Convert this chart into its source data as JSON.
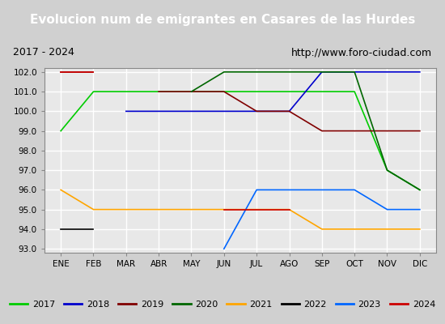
{
  "title": "Evolucion num de emigrantes en Casares de las Hurdes",
  "subtitle_left": "2017 - 2024",
  "subtitle_right": "http://www.foro-ciudad.com",
  "x_labels": [
    "ENE",
    "FEB",
    "MAR",
    "ABR",
    "MAY",
    "JUN",
    "JUL",
    "AGO",
    "SEP",
    "OCT",
    "NOV",
    "DIC"
  ],
  "ylim": [
    93.0,
    102.0
  ],
  "yticks": [
    93.0,
    94.0,
    95.0,
    96.0,
    97.0,
    98.0,
    99.0,
    100.0,
    101.0,
    102.0
  ],
  "series": {
    "2017": {
      "color": "#00cc00",
      "data": [
        99,
        101,
        101,
        101,
        101,
        101,
        101,
        101,
        101,
        101,
        97,
        96
      ]
    },
    "2018": {
      "color": "#0000cc",
      "data": [
        null,
        null,
        100,
        100,
        100,
        100,
        100,
        100,
        102,
        102,
        102,
        102
      ]
    },
    "2019": {
      "color": "#800000",
      "data": [
        102,
        102,
        null,
        101,
        101,
        101,
        100,
        100,
        99,
        99,
        99,
        99
      ]
    },
    "2020": {
      "color": "#006600",
      "data": [
        null,
        null,
        100,
        null,
        101,
        102,
        102,
        102,
        102,
        102,
        97,
        96
      ]
    },
    "2021": {
      "color": "#ffa500",
      "data": [
        96,
        95,
        95,
        95,
        95,
        95,
        95,
        95,
        94,
        94,
        94,
        94
      ]
    },
    "2022": {
      "color": "#000000",
      "data": [
        94,
        94,
        null,
        null,
        null,
        null,
        null,
        null,
        null,
        null,
        null,
        null
      ]
    },
    "2023": {
      "color": "#0066ff",
      "data": [
        null,
        null,
        null,
        null,
        null,
        93,
        96,
        96,
        96,
        96,
        95,
        95
      ]
    },
    "2024": {
      "color": "#cc0000",
      "data": [
        102,
        102,
        null,
        null,
        null,
        95,
        95,
        95,
        null,
        null,
        null,
        95
      ]
    }
  },
  "title_bg_color": "#3366cc",
  "title_text_color": "#ffffff",
  "plot_bg_color": "#e8e8e8",
  "grid_color": "#ffffff",
  "legend_box_color": "#ffffff",
  "legend_border_color": "#888888"
}
